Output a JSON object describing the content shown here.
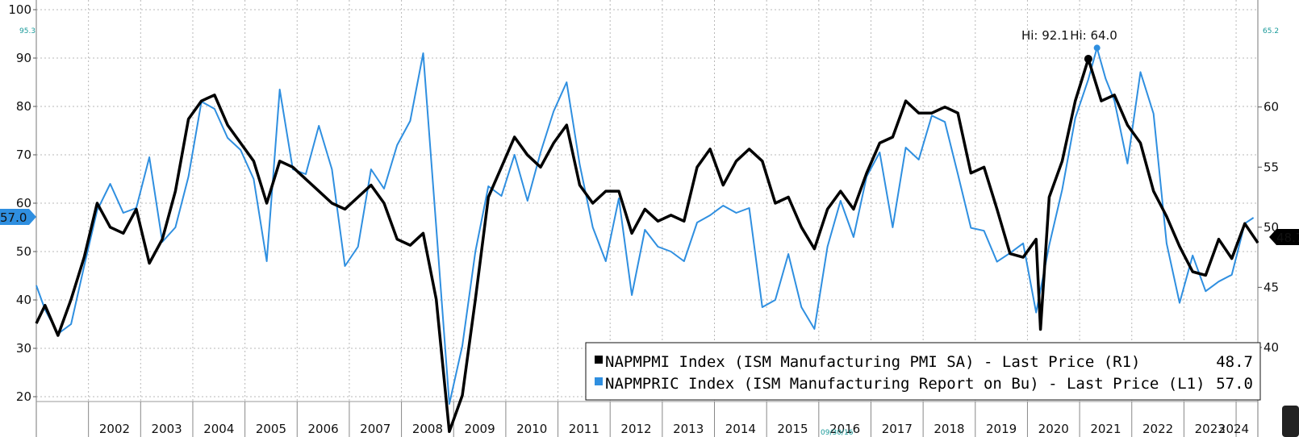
{
  "chart_data": {
    "type": "line",
    "x_axis": {
      "type": "date",
      "range": [
        "2001-01",
        "2024-06"
      ],
      "tick_labels": [
        "2002",
        "2003",
        "2004",
        "2005",
        "2006",
        "2007",
        "2008",
        "2009",
        "2010",
        "2011",
        "2012",
        "2013",
        "2014",
        "2015",
        "2016",
        "2017",
        "2018",
        "2019",
        "2020",
        "2021",
        "2022",
        "2023",
        "2024"
      ]
    },
    "left_axis": {
      "label": "",
      "ylim": [
        19,
        102
      ],
      "ticks": [
        20,
        30,
        40,
        50,
        60,
        70,
        80,
        90,
        100
      ],
      "top_marker": "95.3"
    },
    "right_axis": {
      "label": "",
      "ylim": [
        35.5,
        68.9
      ],
      "ticks": [
        40,
        45,
        50,
        55,
        60
      ],
      "top_marker": "65.2"
    },
    "grid": true,
    "last_value_tags": {
      "left": {
        "text": "57.0",
        "value": 57.0,
        "color": "#2f8fe0"
      },
      "right": {
        "text": "48.7",
        "value": 48.7,
        "color": "#000000"
      }
    },
    "highs": [
      {
        "text": "Hi: 92.1",
        "series": "NAPMPRIC",
        "date": "2021-05",
        "value": 92.1
      },
      {
        "text": "Hi: 64.0",
        "series": "NAPMPMI",
        "date": "2021-03",
        "value": 64.0
      }
    ],
    "footer_date": "09/30/16",
    "legend": {
      "placement": "bottom-right",
      "entries": [
        {
          "series": "NAPMPMI",
          "text": "NAPMPMI Index (ISM Manufacturing PMI SA) - Last Price (R1)",
          "value": "48.7",
          "color": "#000000"
        },
        {
          "series": "NAPMPRIC",
          "text": "NAPMPRIC Index (ISM Manufacturing Report on Bu) - Last Price (L1)",
          "value": "57.0",
          "color": "#2f8fe0"
        }
      ]
    },
    "series": [
      {
        "name": "NAPMPMI",
        "axis": "right",
        "color": "#000000",
        "points": [
          [
            "2001-01",
            42.0
          ],
          [
            "2001-03",
            43.5
          ],
          [
            "2001-06",
            41.0
          ],
          [
            "2001-09",
            44.0
          ],
          [
            "2001-12",
            47.5
          ],
          [
            "2002-03",
            52.0
          ],
          [
            "2002-06",
            50.0
          ],
          [
            "2002-09",
            49.5
          ],
          [
            "2002-12",
            51.5
          ],
          [
            "2003-03",
            47.0
          ],
          [
            "2003-06",
            49.0
          ],
          [
            "2003-09",
            53.0
          ],
          [
            "2003-12",
            59.0
          ],
          [
            "2004-03",
            60.5
          ],
          [
            "2004-06",
            61.0
          ],
          [
            "2004-09",
            58.5
          ],
          [
            "2004-12",
            57.0
          ],
          [
            "2005-03",
            55.5
          ],
          [
            "2005-06",
            52.0
          ],
          [
            "2005-09",
            55.5
          ],
          [
            "2005-12",
            55.0
          ],
          [
            "2006-03",
            54.0
          ],
          [
            "2006-06",
            53.0
          ],
          [
            "2006-09",
            52.0
          ],
          [
            "2006-12",
            51.5
          ],
          [
            "2007-03",
            52.5
          ],
          [
            "2007-06",
            53.5
          ],
          [
            "2007-09",
            52.0
          ],
          [
            "2007-12",
            49.0
          ],
          [
            "2008-03",
            48.5
          ],
          [
            "2008-06",
            49.5
          ],
          [
            "2008-09",
            44.0
          ],
          [
            "2008-12",
            33.0
          ],
          [
            "2009-03",
            36.0
          ],
          [
            "2009-06",
            44.0
          ],
          [
            "2009-09",
            52.5
          ],
          [
            "2009-12",
            55.0
          ],
          [
            "2010-03",
            57.5
          ],
          [
            "2010-06",
            56.0
          ],
          [
            "2010-09",
            55.0
          ],
          [
            "2010-12",
            57.0
          ],
          [
            "2011-03",
            58.5
          ],
          [
            "2011-06",
            53.5
          ],
          [
            "2011-09",
            52.0
          ],
          [
            "2011-12",
            53.0
          ],
          [
            "2012-03",
            53.0
          ],
          [
            "2012-06",
            49.5
          ],
          [
            "2012-09",
            51.5
          ],
          [
            "2012-12",
            50.5
          ],
          [
            "2013-03",
            51.0
          ],
          [
            "2013-06",
            50.5
          ],
          [
            "2013-09",
            55.0
          ],
          [
            "2013-12",
            56.5
          ],
          [
            "2014-03",
            53.5
          ],
          [
            "2014-06",
            55.5
          ],
          [
            "2014-09",
            56.5
          ],
          [
            "2014-12",
            55.5
          ],
          [
            "2015-03",
            52.0
          ],
          [
            "2015-06",
            52.5
          ],
          [
            "2015-09",
            50.0
          ],
          [
            "2015-12",
            48.2
          ],
          [
            "2016-03",
            51.5
          ],
          [
            "2016-06",
            53.0
          ],
          [
            "2016-09",
            51.5
          ],
          [
            "2016-12",
            54.5
          ],
          [
            "2017-03",
            57.0
          ],
          [
            "2017-06",
            57.5
          ],
          [
            "2017-09",
            60.5
          ],
          [
            "2017-12",
            59.5
          ],
          [
            "2018-03",
            59.5
          ],
          [
            "2018-06",
            60.0
          ],
          [
            "2018-09",
            59.5
          ],
          [
            "2018-12",
            54.5
          ],
          [
            "2019-03",
            55.0
          ],
          [
            "2019-06",
            51.5
          ],
          [
            "2019-09",
            47.8
          ],
          [
            "2019-12",
            47.5
          ],
          [
            "2020-03",
            49.0
          ],
          [
            "2020-04",
            41.5
          ],
          [
            "2020-06",
            52.5
          ],
          [
            "2020-09",
            55.5
          ],
          [
            "2020-12",
            60.5
          ],
          [
            "2021-03",
            64.0
          ],
          [
            "2021-06",
            60.5
          ],
          [
            "2021-09",
            61.0
          ],
          [
            "2021-12",
            58.5
          ],
          [
            "2022-03",
            57.0
          ],
          [
            "2022-06",
            53.0
          ],
          [
            "2022-09",
            50.9
          ],
          [
            "2022-12",
            48.4
          ],
          [
            "2023-03",
            46.3
          ],
          [
            "2023-06",
            46.0
          ],
          [
            "2023-09",
            49.0
          ],
          [
            "2023-12",
            47.4
          ],
          [
            "2024-03",
            50.3
          ],
          [
            "2024-06",
            48.7
          ]
        ]
      },
      {
        "name": "NAPMPRIC",
        "axis": "left",
        "color": "#2f8fe0",
        "points": [
          [
            "2001-01",
            43.0
          ],
          [
            "2001-03",
            38.0
          ],
          [
            "2001-06",
            33.0
          ],
          [
            "2001-09",
            35.0
          ],
          [
            "2001-12",
            47.0
          ],
          [
            "2002-03",
            58.5
          ],
          [
            "2002-06",
            64.0
          ],
          [
            "2002-09",
            58.0
          ],
          [
            "2002-12",
            59.0
          ],
          [
            "2003-03",
            69.5
          ],
          [
            "2003-06",
            52.0
          ],
          [
            "2003-09",
            55.0
          ],
          [
            "2003-12",
            65.5
          ],
          [
            "2004-03",
            81.0
          ],
          [
            "2004-06",
            79.5
          ],
          [
            "2004-09",
            73.5
          ],
          [
            "2004-12",
            71.0
          ],
          [
            "2005-03",
            65.0
          ],
          [
            "2005-06",
            48.0
          ],
          [
            "2005-09",
            83.5
          ],
          [
            "2005-12",
            67.0
          ],
          [
            "2006-03",
            66.0
          ],
          [
            "2006-06",
            76.0
          ],
          [
            "2006-09",
            67.0
          ],
          [
            "2006-12",
            47.0
          ],
          [
            "2007-03",
            51.0
          ],
          [
            "2007-06",
            67.0
          ],
          [
            "2007-09",
            63.0
          ],
          [
            "2007-12",
            72.0
          ],
          [
            "2008-03",
            77.0
          ],
          [
            "2008-06",
            91.0
          ],
          [
            "2008-09",
            55.0
          ],
          [
            "2008-12",
            18.5
          ],
          [
            "2009-03",
            30.5
          ],
          [
            "2009-06",
            50.0
          ],
          [
            "2009-09",
            63.5
          ],
          [
            "2009-12",
            61.5
          ],
          [
            "2010-03",
            70.0
          ],
          [
            "2010-06",
            60.5
          ],
          [
            "2010-09",
            70.5
          ],
          [
            "2010-12",
            79.0
          ],
          [
            "2011-03",
            85.0
          ],
          [
            "2011-06",
            68.0
          ],
          [
            "2011-09",
            55.0
          ],
          [
            "2011-12",
            48.0
          ],
          [
            "2012-03",
            61.0
          ],
          [
            "2012-06",
            41.0
          ],
          [
            "2012-09",
            54.5
          ],
          [
            "2012-12",
            51.0
          ],
          [
            "2013-03",
            50.0
          ],
          [
            "2013-06",
            48.0
          ],
          [
            "2013-09",
            56.0
          ],
          [
            "2013-12",
            57.5
          ],
          [
            "2014-03",
            59.5
          ],
          [
            "2014-06",
            58.0
          ],
          [
            "2014-09",
            59.0
          ],
          [
            "2014-12",
            38.5
          ],
          [
            "2015-03",
            40.0
          ],
          [
            "2015-06",
            49.5
          ],
          [
            "2015-09",
            38.5
          ],
          [
            "2015-12",
            34.0
          ],
          [
            "2016-03",
            51.0
          ],
          [
            "2016-06",
            60.5
          ],
          [
            "2016-09",
            53.0
          ],
          [
            "2016-12",
            65.5
          ],
          [
            "2017-03",
            70.5
          ],
          [
            "2017-06",
            55.0
          ],
          [
            "2017-09",
            71.5
          ],
          [
            "2017-12",
            69.0
          ],
          [
            "2018-03",
            78.1
          ],
          [
            "2018-06",
            76.8
          ],
          [
            "2018-09",
            66.0
          ],
          [
            "2018-12",
            54.9
          ],
          [
            "2019-03",
            54.3
          ],
          [
            "2019-06",
            47.9
          ],
          [
            "2019-09",
            49.7
          ],
          [
            "2019-12",
            51.7
          ],
          [
            "2020-03",
            37.4
          ],
          [
            "2020-06",
            51.3
          ],
          [
            "2020-09",
            62.8
          ],
          [
            "2020-12",
            77.6
          ],
          [
            "2021-03",
            85.6
          ],
          [
            "2021-05",
            92.1
          ],
          [
            "2021-07",
            85.7
          ],
          [
            "2021-09",
            81.2
          ],
          [
            "2021-12",
            68.2
          ],
          [
            "2022-03",
            87.1
          ],
          [
            "2022-06",
            78.5
          ],
          [
            "2022-09",
            51.7
          ],
          [
            "2022-12",
            39.4
          ],
          [
            "2023-03",
            49.2
          ],
          [
            "2023-06",
            41.8
          ],
          [
            "2023-09",
            43.8
          ],
          [
            "2023-12",
            45.2
          ],
          [
            "2024-03",
            55.8
          ],
          [
            "2024-05",
            57.0
          ]
        ]
      }
    ]
  }
}
